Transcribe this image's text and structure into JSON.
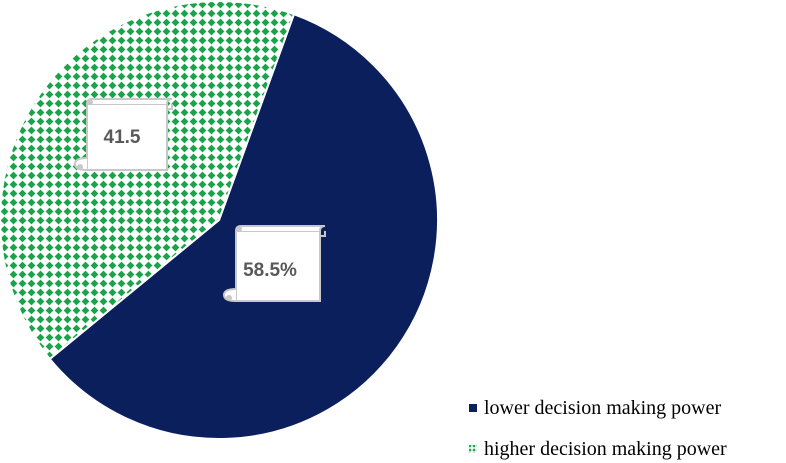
{
  "chart_data": {
    "type": "pie",
    "title": "",
    "slices": [
      {
        "name": "lower decision making power",
        "value": 58.5,
        "label": "58.5%",
        "color": "#0b1f5c"
      },
      {
        "name": "higher decision making power",
        "value": 41.5,
        "label": "41.5",
        "color": "#1aa34a"
      }
    ],
    "legend_position": "bottom-right",
    "label_style": "scroll-callout"
  }
}
